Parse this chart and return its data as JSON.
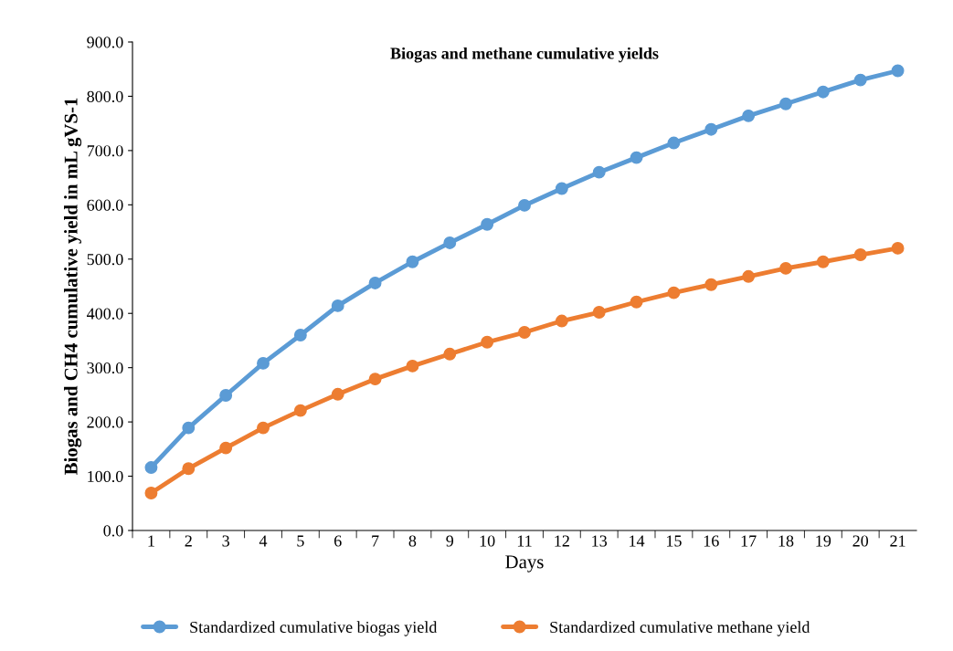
{
  "chart_data": {
    "type": "line",
    "title": "Biogas and methane cumulative yields",
    "xlabel": "Days",
    "ylabel": "Biogas and CH4 cumulative yield in mL gVS-1",
    "categories": [
      "1",
      "2",
      "3",
      "4",
      "5",
      "6",
      "7",
      "8",
      "9",
      "10",
      "11",
      "12",
      "13",
      "14",
      "15",
      "16",
      "17",
      "18",
      "19",
      "20",
      "21"
    ],
    "series": [
      {
        "name": "Standardized cumulative biogas yield",
        "color": "#5b9bd5",
        "values": [
          116,
          189,
          249,
          308,
          360,
          414,
          456,
          495,
          530,
          564,
          599,
          630,
          660,
          687,
          714,
          739,
          764,
          786,
          808,
          830,
          847
        ]
      },
      {
        "name": "Standardized cumulative methane yield",
        "color": "#ed7d31",
        "values": [
          69,
          114,
          152,
          189,
          221,
          251,
          279,
          303,
          325,
          347,
          365,
          386,
          402,
          421,
          438,
          453,
          468,
          483,
          495,
          508,
          520
        ]
      }
    ],
    "ylim": [
      0,
      900
    ],
    "yticks": [
      {
        "value": 0,
        "label": "0.0"
      },
      {
        "value": 100,
        "label": "100.0"
      },
      {
        "value": 200,
        "label": "200.0"
      },
      {
        "value": 300,
        "label": "300.0"
      },
      {
        "value": 400,
        "label": "400.0"
      },
      {
        "value": 500,
        "label": "500.0"
      },
      {
        "value": 600,
        "label": "600.0"
      },
      {
        "value": 700,
        "label": "700.0"
      },
      {
        "value": 800,
        "label": "800.0"
      },
      {
        "value": 900,
        "label": "900.0"
      }
    ],
    "grid": false,
    "legend": "bottom",
    "marker": "circle",
    "line_style": "solid"
  }
}
